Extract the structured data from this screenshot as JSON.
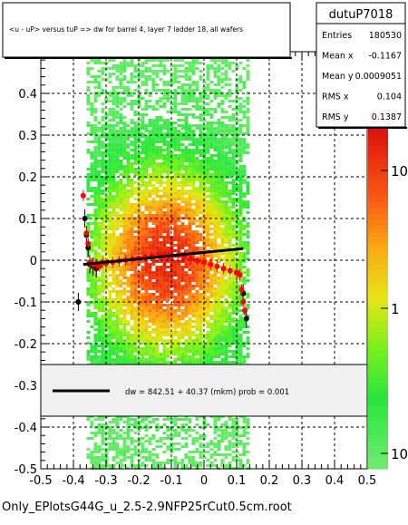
{
  "footer_label": "Only_EPlotsG44G_u_2.5-2.9NFP25rCut0.5cm.root",
  "title_box": {
    "text": "<u - uP>       versus  tuP =>  dw for barrel 4, layer 7 ladder 18, all wafers"
  },
  "stats_box": {
    "name": "dutuP7018",
    "rows": [
      {
        "label": "Entries",
        "value": "180530"
      },
      {
        "label": "Mean x",
        "value": "-0.1167"
      },
      {
        "label": "Mean y",
        "value": "0.0009051"
      },
      {
        "label": "RMS x",
        "value": "0.104"
      },
      {
        "label": "RMS y",
        "value": "0.1387"
      }
    ]
  },
  "legend_box": {
    "text": "dw =  842.51 + 40.37 (mkm) prob = 0.001"
  },
  "colors": {
    "fit_line": "#000000",
    "profile_red": "#ff0000",
    "profile_black": "#000000",
    "grid": "#000000"
  },
  "chart_data": {
    "type": "heatmap",
    "xlim": [
      -0.5,
      0.5
    ],
    "ylim": [
      -0.5,
      0.5
    ],
    "x_ticks": [
      "-0.5",
      "-0.4",
      "-0.3",
      "-0.2",
      "-0.1",
      "0",
      "0.1",
      "0.2",
      "0.3",
      "0.4",
      "0.5"
    ],
    "y_ticks": [
      "-0.5",
      "-0.4",
      "-0.3",
      "-0.2",
      "-0.1",
      "0",
      "0.1",
      "0.2",
      "0.3",
      "0.4"
    ],
    "grid": true,
    "colorbar": {
      "scale": "log",
      "tick_labels": [
        "10",
        "1",
        "10"
      ]
    },
    "density": {
      "x_range": [
        -0.36,
        0.13
      ],
      "y_center": 0.0,
      "x_center": -0.12
    },
    "fit_line": {
      "x": [
        -0.37,
        0.12
      ],
      "y": [
        -0.01,
        0.028
      ]
    },
    "profile_red": [
      {
        "x": -0.37,
        "y": 0.155
      },
      {
        "x": -0.36,
        "y": 0.065
      },
      {
        "x": -0.355,
        "y": 0.04
      },
      {
        "x": -0.35,
        "y": -0.005
      },
      {
        "x": -0.34,
        "y": -0.01
      },
      {
        "x": -0.33,
        "y": -0.01
      },
      {
        "x": -0.32,
        "y": -0.015
      },
      {
        "x": -0.31,
        "y": -0.005
      },
      {
        "x": -0.3,
        "y": -0.008
      },
      {
        "x": -0.28,
        "y": -0.005
      },
      {
        "x": -0.26,
        "y": -0.002
      },
      {
        "x": -0.24,
        "y": 0.0
      },
      {
        "x": -0.22,
        "y": 0.003
      },
      {
        "x": -0.2,
        "y": 0.005
      },
      {
        "x": -0.18,
        "y": 0.008
      },
      {
        "x": -0.16,
        "y": 0.01
      },
      {
        "x": -0.14,
        "y": 0.012
      },
      {
        "x": -0.12,
        "y": 0.014
      },
      {
        "x": -0.1,
        "y": 0.013
      },
      {
        "x": -0.08,
        "y": 0.012
      },
      {
        "x": -0.06,
        "y": 0.01
      },
      {
        "x": -0.04,
        "y": 0.004
      },
      {
        "x": -0.02,
        "y": -0.002
      },
      {
        "x": 0.0,
        "y": -0.005
      },
      {
        "x": 0.02,
        "y": -0.01
      },
      {
        "x": 0.04,
        "y": -0.015
      },
      {
        "x": 0.06,
        "y": -0.02
      },
      {
        "x": 0.08,
        "y": -0.025
      },
      {
        "x": 0.1,
        "y": -0.03
      },
      {
        "x": 0.11,
        "y": -0.035
      },
      {
        "x": 0.115,
        "y": -0.07
      },
      {
        "x": 0.12,
        "y": -0.1
      },
      {
        "x": 0.125,
        "y": -0.12
      }
    ],
    "profile_black": [
      {
        "x": -0.385,
        "y": -0.1
      },
      {
        "x": -0.365,
        "y": 0.1
      },
      {
        "x": -0.36,
        "y": 0.06
      },
      {
        "x": -0.355,
        "y": 0.03
      },
      {
        "x": -0.35,
        "y": -0.01
      },
      {
        "x": -0.34,
        "y": -0.015
      },
      {
        "x": -0.33,
        "y": -0.02
      },
      {
        "x": 0.1,
        "y": -0.03
      },
      {
        "x": 0.12,
        "y": -0.08
      },
      {
        "x": 0.13,
        "y": -0.14
      }
    ]
  }
}
